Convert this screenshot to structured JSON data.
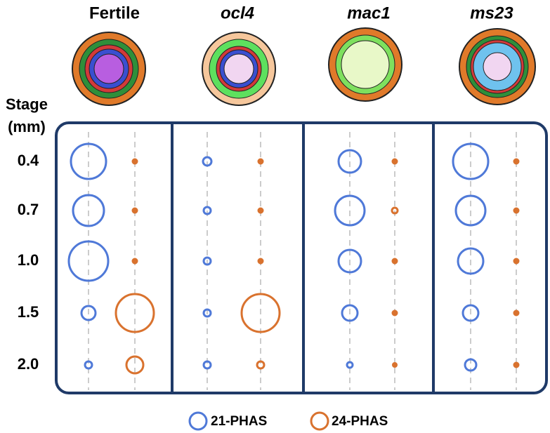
{
  "chart_data": {
    "type": "bubble",
    "y_label": [
      "Stage",
      "(mm)"
    ],
    "categories": [
      "0.4",
      "0.7",
      "1.0",
      "1.5",
      "2.0"
    ],
    "panels": [
      {
        "name": "Fertile",
        "series": [
          {
            "name": "21-PHAS",
            "color": "#4f79d8",
            "values": [
              25,
              22,
              28,
              10,
              5
            ]
          },
          {
            "name": "24-PHAS",
            "color": "#d9722e",
            "values": [
              3,
              3,
              3,
              27,
              12
            ]
          }
        ]
      },
      {
        "name": "ocl4",
        "series": [
          {
            "name": "21-PHAS",
            "color": "#4f79d8",
            "values": [
              6,
              5,
              5,
              5,
              5
            ]
          },
          {
            "name": "24-PHAS",
            "color": "#d9722e",
            "values": [
              3,
              3,
              3,
              27,
              5
            ]
          }
        ]
      },
      {
        "name": "mac1",
        "series": [
          {
            "name": "21-PHAS",
            "color": "#4f79d8",
            "values": [
              16,
              21,
              16,
              11,
              4
            ]
          },
          {
            "name": "24-PHAS",
            "color": "#d9722e",
            "values": [
              3,
              4,
              3,
              3,
              2.5
            ]
          }
        ]
      },
      {
        "name": "ms23",
        "series": [
          {
            "name": "21-PHAS",
            "color": "#4f79d8",
            "values": [
              25,
              21,
              18,
              11,
              8
            ]
          },
          {
            "name": "24-PHAS",
            "color": "#d9722e",
            "values": [
              3,
              3,
              3,
              3,
              3
            ]
          }
        ]
      }
    ]
  }
}
